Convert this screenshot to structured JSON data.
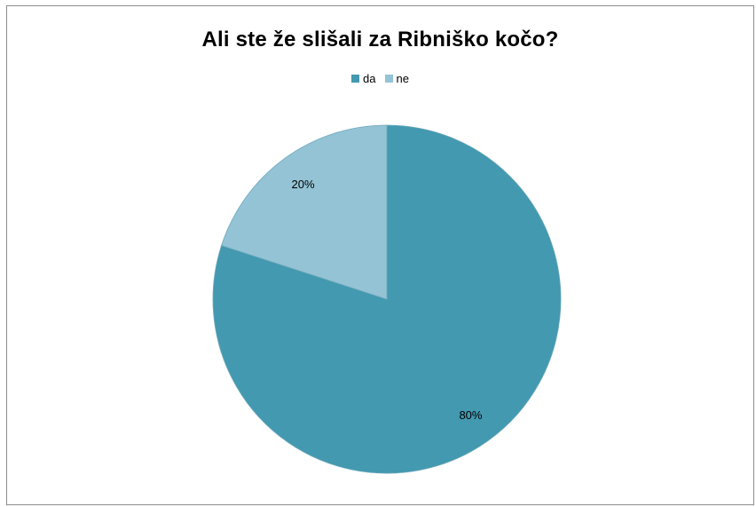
{
  "chart_data": {
    "type": "pie",
    "title": "Ali ste že slišali za Ribniško kočo?",
    "legend_position": "top",
    "slices": [
      {
        "name": "da",
        "value": 80,
        "label": "80%",
        "color": "#4299B0"
      },
      {
        "name": "ne",
        "value": 20,
        "label": "20%",
        "color": "#93C3D5"
      }
    ]
  }
}
